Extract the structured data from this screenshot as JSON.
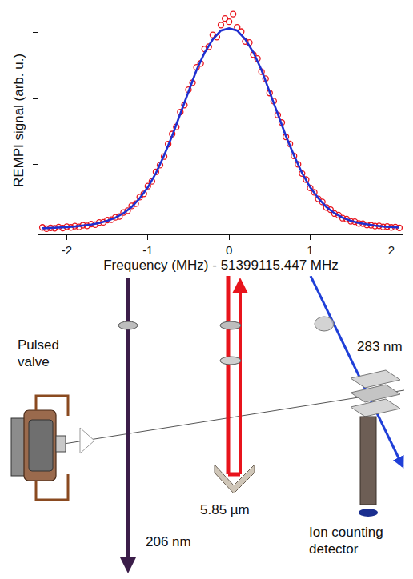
{
  "chart_data": {
    "type": "scatter",
    "x_label": "Frequency (MHz) - 51399115.447 MHz",
    "y_label": "REMPI signal (arb. u.)",
    "xlim": [
      -2.35,
      2.15
    ],
    "xticks": [
      -2,
      -1,
      0,
      1,
      2
    ],
    "ylim": [
      -0.02,
      1.02
    ],
    "yticks": [
      0,
      0.3,
      0.6,
      0.9
    ],
    "tick_labels": "x",
    "grid": false,
    "series": [
      {
        "type": "scatter",
        "color": "#e8141c",
        "marker": "circle-open",
        "x": [
          -2.3,
          -2.25,
          -2.2,
          -2.15,
          -2.1,
          -2.05,
          -2.0,
          -1.95,
          -1.9,
          -1.85,
          -1.8,
          -1.75,
          -1.7,
          -1.65,
          -1.6,
          -1.55,
          -1.5,
          -1.45,
          -1.4,
          -1.35,
          -1.3,
          -1.25,
          -1.2,
          -1.15,
          -1.1,
          -1.05,
          -1.0,
          -0.95,
          -0.9,
          -0.85,
          -0.8,
          -0.75,
          -0.7,
          -0.65,
          -0.6,
          -0.55,
          -0.5,
          -0.45,
          -0.4,
          -0.35,
          -0.3,
          -0.25,
          -0.2,
          -0.15,
          -0.1,
          -0.05,
          0.0,
          0.05,
          0.1,
          0.15,
          0.2,
          0.25,
          0.3,
          0.35,
          0.4,
          0.45,
          0.5,
          0.55,
          0.6,
          0.65,
          0.7,
          0.75,
          0.8,
          0.85,
          0.9,
          0.95,
          1.0,
          1.05,
          1.1,
          1.15,
          1.2,
          1.25,
          1.3,
          1.35,
          1.4,
          1.45,
          1.5,
          1.55,
          1.6,
          1.65,
          1.7,
          1.75,
          1.8,
          1.85,
          1.9,
          1.95,
          2.0,
          2.05,
          2.1
        ],
        "values": [
          0.012,
          0.006,
          0.01,
          0.008,
          0.013,
          0.009,
          0.015,
          0.012,
          0.018,
          0.014,
          0.022,
          0.019,
          0.027,
          0.024,
          0.034,
          0.035,
          0.045,
          0.047,
          0.058,
          0.062,
          0.08,
          0.088,
          0.11,
          0.12,
          0.15,
          0.165,
          0.2,
          0.222,
          0.265,
          0.296,
          0.335,
          0.392,
          0.438,
          0.47,
          0.538,
          0.57,
          0.64,
          0.672,
          0.742,
          0.76,
          0.826,
          0.836,
          0.89,
          0.88,
          0.935,
          0.965,
          0.95,
          0.985,
          0.925,
          0.905,
          0.86,
          0.855,
          0.8,
          0.782,
          0.722,
          0.69,
          0.625,
          0.588,
          0.525,
          0.49,
          0.425,
          0.393,
          0.338,
          0.3,
          0.258,
          0.23,
          0.192,
          0.172,
          0.142,
          0.128,
          0.103,
          0.093,
          0.075,
          0.068,
          0.054,
          0.05,
          0.04,
          0.038,
          0.03,
          0.029,
          0.023,
          0.022,
          0.018,
          0.019,
          0.014,
          0.016,
          0.012,
          0.013,
          0.01
        ]
      },
      {
        "type": "line",
        "color": "#1f2fd0",
        "line_style": "solid",
        "x": [
          -2.3,
          -2.2,
          -2.1,
          -2.0,
          -1.9,
          -1.8,
          -1.7,
          -1.6,
          -1.5,
          -1.4,
          -1.3,
          -1.2,
          -1.1,
          -1.0,
          -0.9,
          -0.8,
          -0.7,
          -0.6,
          -0.5,
          -0.4,
          -0.3,
          -0.2,
          -0.1,
          0.0,
          0.1,
          0.2,
          0.3,
          0.4,
          0.5,
          0.6,
          0.7,
          0.8,
          0.9,
          1.0,
          1.1,
          1.2,
          1.3,
          1.4,
          1.5,
          1.6,
          1.7,
          1.8,
          1.9,
          2.0,
          2.1
        ],
        "values": [
          0.008,
          0.009,
          0.011,
          0.013,
          0.016,
          0.02,
          0.025,
          0.032,
          0.042,
          0.056,
          0.077,
          0.105,
          0.145,
          0.195,
          0.26,
          0.34,
          0.43,
          0.53,
          0.63,
          0.73,
          0.81,
          0.87,
          0.91,
          0.92,
          0.91,
          0.87,
          0.81,
          0.73,
          0.63,
          0.53,
          0.43,
          0.34,
          0.26,
          0.195,
          0.145,
          0.105,
          0.077,
          0.056,
          0.042,
          0.032,
          0.025,
          0.02,
          0.016,
          0.013,
          0.011
        ]
      }
    ]
  },
  "diagram": {
    "labels": {
      "valve": "Pulsed valve",
      "uv1": "206 nm",
      "ir": "5.85 µm",
      "uv2": "283 nm",
      "detector": "Ion counting detector"
    }
  }
}
